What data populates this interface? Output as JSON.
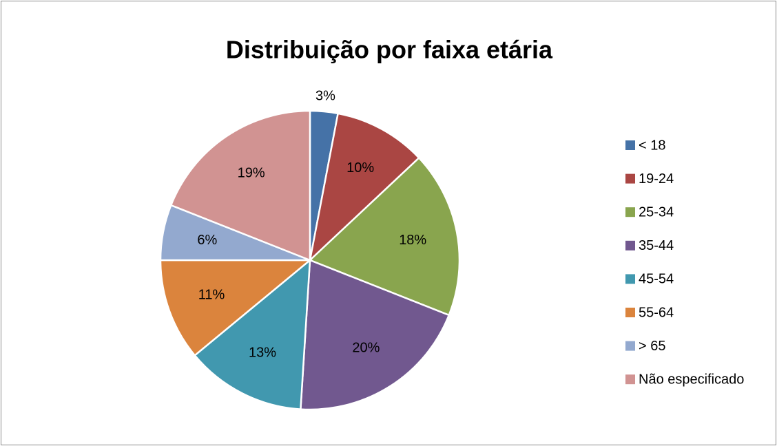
{
  "chart_data": {
    "type": "pie",
    "title": "Distribuição por faixa etária",
    "categories": [
      "< 18",
      "19-24",
      "25-34",
      "35-44",
      "45-54",
      "55-64",
      "> 65",
      "Não especificado"
    ],
    "values": [
      3,
      10,
      18,
      20,
      13,
      11,
      6,
      19
    ],
    "value_labels": [
      "3%",
      "10%",
      "18%",
      "20%",
      "13%",
      "11%",
      "6%",
      "19%"
    ],
    "colors": [
      "#4572a7",
      "#aa4643",
      "#89a54e",
      "#71588f",
      "#4198af",
      "#db843d",
      "#93a9cf",
      "#d19392"
    ],
    "legend": "right"
  }
}
